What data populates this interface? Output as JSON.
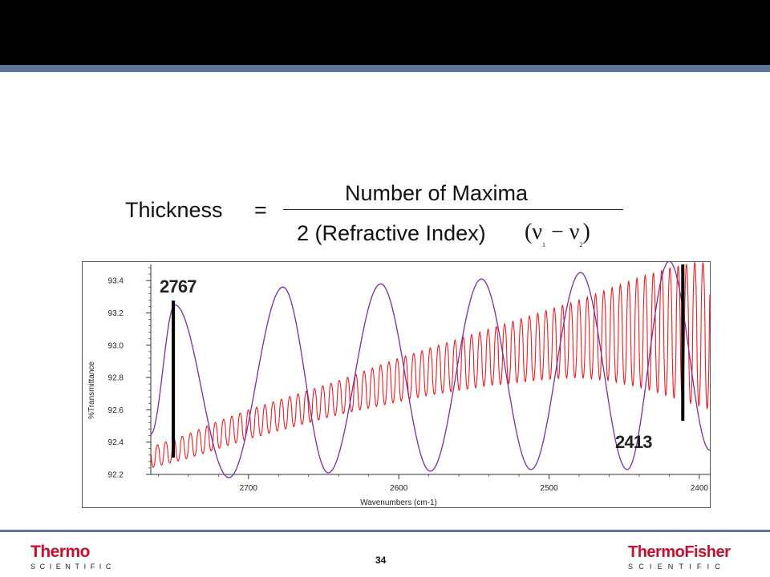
{
  "formula": {
    "lhs": "Thickness",
    "equals": "=",
    "numerator": "Number of Maxima",
    "denominator": "2 (Refractive Index)",
    "nu_open": "(",
    "nu_symbol": "ν",
    "nu_sub1": "1",
    "minus": "−",
    "nu_sub2": "2",
    "nu_close": ")"
  },
  "chart_data": {
    "type": "line",
    "xlabel": "Wavenumbers (cm-1)",
    "ylabel": "%Transmittance",
    "x_range": [
      2765,
      2393
    ],
    "x_direction": "descending",
    "ylim": [
      92.2,
      93.5
    ],
    "x_ticks": [
      "2700",
      "2600",
      "2500",
      "2400"
    ],
    "y_ticks": [
      "92.2",
      "92.4",
      "92.6",
      "92.8",
      "93.0",
      "93.2",
      "93.4"
    ],
    "grid": false,
    "colors": {
      "fringe_series": "#ee1c1c",
      "broad_series": "#7a2e9e",
      "marker": "#000000"
    },
    "series": [
      {
        "description": "short-period interference fringes",
        "x": [
          2765,
          2740,
          2720,
          2700,
          2680,
          2660,
          2640,
          2620,
          2600,
          2580,
          2560,
          2540,
          2520,
          2500,
          2480,
          2460,
          2440,
          2420,
          2400,
          2393
        ],
        "max": [
          92.37,
          92.45,
          92.53,
          92.6,
          92.66,
          92.72,
          92.78,
          92.85,
          92.92,
          92.98,
          93.04,
          93.1,
          93.16,
          93.22,
          93.28,
          93.35,
          93.42,
          93.48,
          93.52,
          93.5
        ],
        "min": [
          92.24,
          92.3,
          92.36,
          92.42,
          92.47,
          92.52,
          92.57,
          92.61,
          92.65,
          92.69,
          92.72,
          92.75,
          92.77,
          92.79,
          92.8,
          92.78,
          92.74,
          92.68,
          92.62,
          92.6
        ],
        "fringe_spacing_cm1": 5.5
      },
      {
        "description": "long-period interference fringes",
        "maxima": [
          [
            2749,
            93.25
          ],
          [
            2677,
            93.36
          ],
          [
            2612,
            93.38
          ],
          [
            2545,
            93.41
          ],
          [
            2479,
            93.45
          ],
          [
            2420,
            93.52
          ]
        ],
        "minima": [
          [
            2765,
            92.45
          ],
          [
            2713,
            92.18
          ],
          [
            2647,
            92.21
          ],
          [
            2579,
            92.22
          ],
          [
            2512,
            92.23
          ],
          [
            2448,
            92.23
          ],
          [
            2393,
            92.35
          ]
        ]
      }
    ],
    "annotations": [
      {
        "label": "2767",
        "x": 2750
      },
      {
        "label": "2413",
        "x": 2411
      }
    ]
  },
  "footer": {
    "page_number": "34",
    "logo_left_word": "Thermo",
    "logo_left_sub": "SCIENTIFIC",
    "logo_right_word": "ThermoFisher",
    "logo_right_sub": "SCIENTIFIC"
  }
}
